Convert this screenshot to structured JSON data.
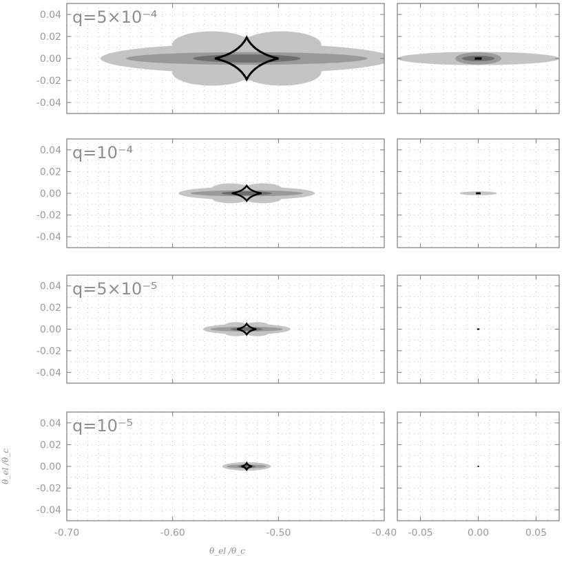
{
  "chart_data": [
    {
      "type": "contour-map",
      "panel": "row1-left",
      "label": "q=5×10⁻⁴",
      "q": 0.0005,
      "xlim": [
        -0.7,
        -0.4
      ],
      "ylim": [
        -0.05,
        0.05
      ],
      "caustic_center": [
        -0.53,
        0.0
      ],
      "caustic_half_width": 0.03,
      "caustic_half_height": 0.019,
      "lobes": {
        "central": [
          -0.53,
          0.0,
          0.015,
          0.005
        ],
        "horiz_outer": [
          -0.53,
          0.0,
          0.14,
          0.012
        ],
        "left_diag": [
          -0.56,
          0.012,
          0.03,
          0.012
        ],
        "right_diag": [
          -0.5,
          0.012,
          0.03,
          0.012
        ]
      }
    },
    {
      "type": "contour-map",
      "panel": "row1-right",
      "q": 0.0005,
      "xlim": [
        -0.07,
        0.07
      ],
      "ylim": [
        -0.05,
        0.05
      ],
      "caustic_center": [
        0.0,
        0.0
      ],
      "caustic_half_width": 0.003
    },
    {
      "type": "contour-map",
      "panel": "row2-left",
      "label": "q=10⁻⁴",
      "q": 0.0001,
      "xlim": [
        -0.7,
        -0.4
      ],
      "ylim": [
        -0.05,
        0.05
      ],
      "caustic_center": [
        -0.53,
        0.0
      ],
      "caustic_half_width": 0.014,
      "caustic_half_height": 0.007
    },
    {
      "type": "contour-map",
      "panel": "row2-right",
      "q": 0.0001,
      "xlim": [
        -0.07,
        0.07
      ],
      "ylim": [
        -0.05,
        0.05
      ],
      "caustic_center": [
        0.0,
        0.0
      ],
      "caustic_half_width": 0.002
    },
    {
      "type": "contour-map",
      "panel": "row3-left",
      "label": "q=5×10⁻⁵",
      "q": 5e-05,
      "xlim": [
        -0.7,
        -0.4
      ],
      "ylim": [
        -0.05,
        0.05
      ],
      "caustic_center": [
        -0.53,
        0.0
      ],
      "caustic_half_width": 0.009,
      "caustic_half_height": 0.005
    },
    {
      "type": "contour-map",
      "panel": "row3-right",
      "q": 5e-05,
      "xlim": [
        -0.07,
        0.07
      ],
      "ylim": [
        -0.05,
        0.05
      ],
      "caustic_center": [
        0.0,
        0.0
      ],
      "caustic_half_width": 0.001
    },
    {
      "type": "contour-map",
      "panel": "row4-left",
      "label": "q=10⁻⁵",
      "q": 1e-05,
      "xlim": [
        -0.7,
        -0.4
      ],
      "ylim": [
        -0.05,
        0.05
      ],
      "caustic_center": [
        -0.53,
        0.0
      ],
      "caustic_half_width": 0.005,
      "caustic_half_height": 0.003
    },
    {
      "type": "contour-map",
      "panel": "row4-right",
      "q": 1e-05,
      "xlim": [
        -0.07,
        0.07
      ],
      "ylim": [
        -0.05,
        0.05
      ],
      "caustic_center": [
        0.0,
        0.0
      ],
      "caustic_half_width": 0.0005
    }
  ],
  "axes": {
    "y_ticks": [
      "0.04",
      "0.02",
      "0.00",
      "-0.02",
      "-0.04"
    ],
    "y_tick_values": [
      0.04,
      0.02,
      0.0,
      -0.02,
      -0.04
    ],
    "x_ticks_left": [
      "-0.70",
      "-0.60",
      "-0.50",
      "-0.40"
    ],
    "x_tick_values_left": [
      -0.7,
      -0.6,
      -0.5,
      -0.4
    ],
    "x_ticks_right": [
      "-0.05",
      "0.00",
      "0.05"
    ],
    "x_tick_values_right": [
      -0.05,
      0.0,
      0.05
    ],
    "xlabel": "θ_el /θ_c",
    "ylabel": "θ_el /θ_c"
  },
  "colors": {
    "light_gray": "#c4c4c4",
    "mid_gray": "#9a9a9a",
    "dark_gray": "#6e6e6e",
    "caustic": "#000000",
    "frame": "#7a7a7a",
    "grid": "#c8c8c8"
  }
}
